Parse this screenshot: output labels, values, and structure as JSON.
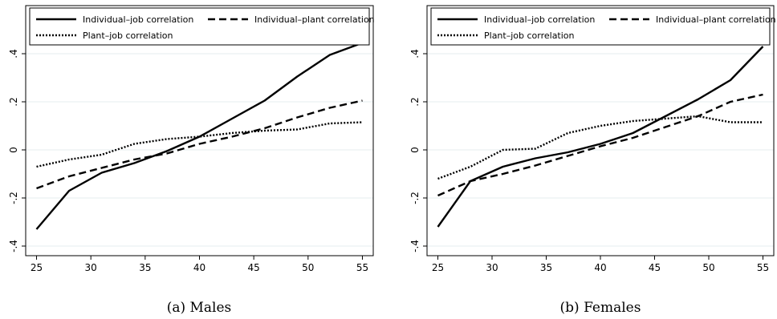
{
  "panels": [
    {
      "caption": "(a) Males",
      "chart_data": {
        "type": "line",
        "title": "",
        "xlabel": "",
        "ylabel": "",
        "xlim": [
          24,
          56
        ],
        "ylim": [
          -0.44,
          0.6
        ],
        "x_ticks": [
          25,
          30,
          35,
          40,
          45,
          50,
          55
        ],
        "x_tick_labels": [
          "25",
          "30",
          "35",
          "40",
          "45",
          "50",
          "55"
        ],
        "y_ticks": [
          -0.4,
          -0.2,
          0,
          0.2,
          0.4
        ],
        "y_tick_labels": [
          "-.4",
          "-.2",
          "0",
          ".2",
          ".4"
        ],
        "grid": true,
        "legend_position": "top",
        "series": [
          {
            "name": "Individual–job correlation",
            "style": "solid",
            "x": [
              25,
              28,
              31,
              34,
              37,
              40,
              43,
              46,
              49,
              52,
              55
            ],
            "y": [
              -0.33,
              -0.17,
              -0.095,
              -0.055,
              -0.005,
              0.055,
              0.13,
              0.205,
              0.305,
              0.395,
              0.445
            ]
          },
          {
            "name": "Individual–plant correlation",
            "style": "dashed",
            "x": [
              25,
              28,
              31,
              34,
              37,
              40,
              43,
              46,
              49,
              52,
              55
            ],
            "y": [
              -0.16,
              -0.11,
              -0.075,
              -0.04,
              -0.015,
              0.025,
              0.055,
              0.09,
              0.135,
              0.175,
              0.205
            ]
          },
          {
            "name": "Plant–job correlation",
            "style": "dotted",
            "x": [
              25,
              28,
              31,
              34,
              37,
              40,
              43,
              46,
              49,
              52,
              55
            ],
            "y": [
              -0.07,
              -0.04,
              -0.02,
              0.025,
              0.045,
              0.055,
              0.07,
              0.08,
              0.085,
              0.11,
              0.115
            ]
          }
        ]
      }
    },
    {
      "caption": "(b) Females",
      "chart_data": {
        "type": "line",
        "title": "",
        "xlabel": "",
        "ylabel": "",
        "xlim": [
          24,
          56
        ],
        "ylim": [
          -0.44,
          0.6
        ],
        "x_ticks": [
          25,
          30,
          35,
          40,
          45,
          50,
          55
        ],
        "x_tick_labels": [
          "25",
          "30",
          "35",
          "40",
          "45",
          "50",
          "55"
        ],
        "y_ticks": [
          -0.4,
          -0.2,
          0,
          0.2,
          0.4
        ],
        "y_tick_labels": [
          "-.4",
          "-.2",
          "0",
          ".2",
          ".4"
        ],
        "grid": true,
        "legend_position": "top",
        "series": [
          {
            "name": "Individual–job correlation",
            "style": "solid",
            "x": [
              25,
              28,
              31,
              34,
              37,
              40,
              43,
              46,
              49,
              52,
              55
            ],
            "y": [
              -0.32,
              -0.13,
              -0.07,
              -0.035,
              -0.01,
              0.025,
              0.07,
              0.14,
              0.21,
              0.29,
              0.43
            ]
          },
          {
            "name": "Individual–plant correlation",
            "style": "dashed",
            "x": [
              25,
              28,
              31,
              34,
              37,
              40,
              43,
              46,
              49,
              52,
              55
            ],
            "y": [
              -0.19,
              -0.13,
              -0.1,
              -0.065,
              -0.025,
              0.015,
              0.05,
              0.095,
              0.14,
              0.2,
              0.23
            ]
          },
          {
            "name": "Plant–job correlation",
            "style": "dotted",
            "x": [
              25,
              28,
              31,
              34,
              37,
              40,
              43,
              46,
              49,
              52,
              55
            ],
            "y": [
              -0.12,
              -0.07,
              0.0,
              0.005,
              0.07,
              0.1,
              0.12,
              0.13,
              0.14,
              0.115,
              0.115
            ]
          }
        ]
      }
    }
  ]
}
